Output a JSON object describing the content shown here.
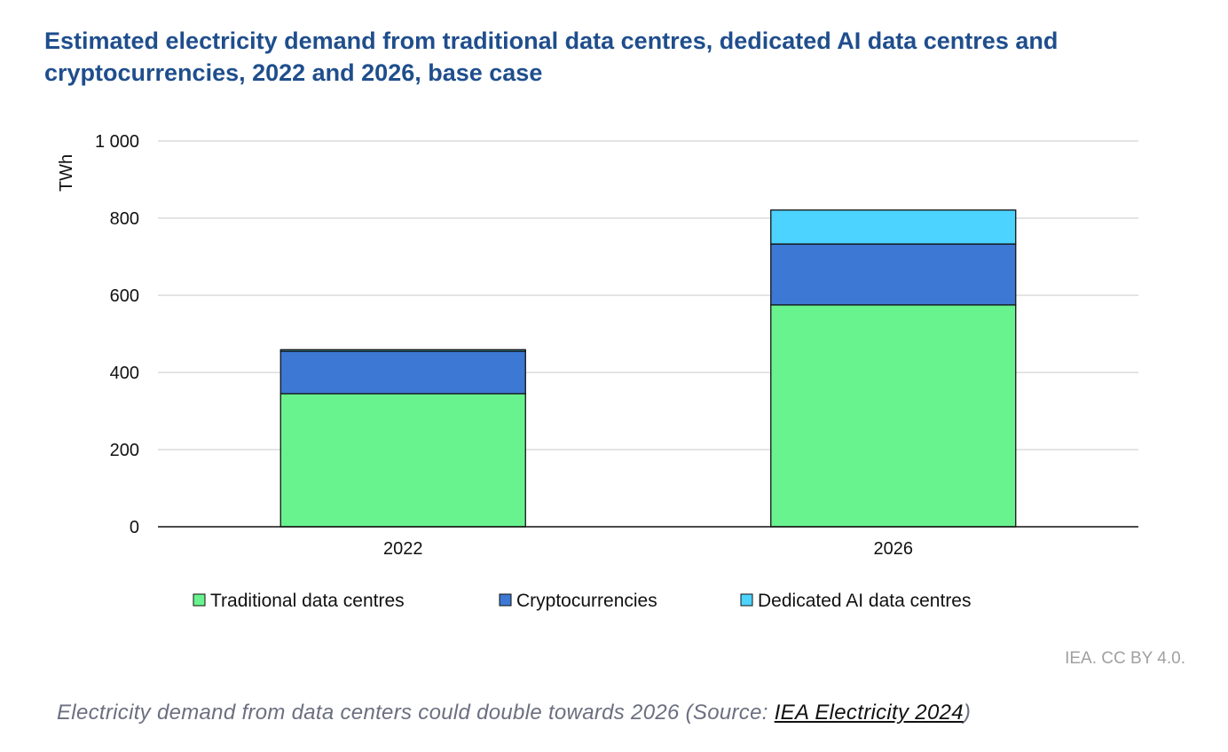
{
  "chart_data": {
    "type": "bar",
    "stacked": true,
    "title": "Estimated electricity demand from traditional data centres, dedicated AI data centres and cryptocurrencies, 2022 and 2026, base case",
    "xlabel": "",
    "ylabel": "TWh",
    "ylim": [
      0,
      1000
    ],
    "yticks": [
      0,
      200,
      400,
      600,
      800,
      1000
    ],
    "ytick_labels": [
      "0",
      "200",
      "400",
      "600",
      "800",
      "1 000"
    ],
    "grid": true,
    "legend_position": "bottom",
    "categories": [
      "2022",
      "2026"
    ],
    "series": [
      {
        "name": "Traditional data centres",
        "color": "#69f38f",
        "values": [
          345,
          575
        ]
      },
      {
        "name": "Cryptocurrencies",
        "color": "#3c78d4",
        "values": [
          110,
          158
        ]
      },
      {
        "name": "Dedicated AI data centres",
        "color": "#4cd3ff",
        "values": [
          4,
          88
        ]
      }
    ]
  },
  "credit": "IEA. CC BY 4.0.",
  "caption": {
    "text": "Electricity demand from data centers could double towards 2026 (Source: ",
    "link": "IEA Electricity 2024",
    "end": ")"
  }
}
